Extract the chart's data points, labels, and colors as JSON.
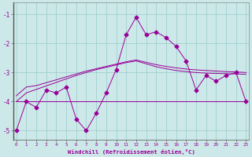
{
  "x": [
    0,
    1,
    2,
    3,
    4,
    5,
    6,
    7,
    8,
    9,
    10,
    11,
    12,
    13,
    14,
    15,
    16,
    17,
    18,
    19,
    20,
    21,
    22,
    23
  ],
  "y_main": [
    -5.0,
    -4.0,
    -4.2,
    -3.6,
    -3.7,
    -3.5,
    -4.6,
    -5.0,
    -4.4,
    -3.7,
    -2.9,
    -1.7,
    -1.1,
    -1.7,
    -1.6,
    -1.8,
    -2.1,
    -2.6,
    -3.6,
    -3.1,
    -3.3,
    -3.1,
    -3.0,
    -4.0
  ],
  "y_smooth1": [
    -3.8,
    -3.5,
    -3.45,
    -3.35,
    -3.25,
    -3.15,
    -3.05,
    -2.95,
    -2.87,
    -2.79,
    -2.71,
    -2.63,
    -2.57,
    -2.65,
    -2.73,
    -2.79,
    -2.84,
    -2.88,
    -2.91,
    -2.93,
    -2.95,
    -2.97,
    -2.98,
    -3.0
  ],
  "y_smooth2": [
    -4.0,
    -3.7,
    -3.58,
    -3.46,
    -3.34,
    -3.22,
    -3.1,
    -3.0,
    -2.9,
    -2.82,
    -2.74,
    -2.66,
    -2.6,
    -2.7,
    -2.8,
    -2.87,
    -2.93,
    -2.97,
    -3.0,
    -3.02,
    -3.03,
    -3.04,
    -3.05,
    -3.06
  ],
  "y_flat": [
    -4.0,
    -4.0,
    -4.0,
    -4.0,
    -4.0,
    -4.0,
    -4.0,
    -4.0,
    -4.0,
    -4.0,
    -4.0,
    -4.0,
    -4.0,
    -4.0,
    -4.0,
    -4.0,
    -4.0,
    -4.0,
    -4.0,
    -4.0,
    -4.0,
    -4.0,
    -4.0,
    -4.0
  ],
  "line_color": "#990099",
  "bg_color": "#cce8e8",
  "grid_color": "#99cccc",
  "ylim": [
    -5.3,
    -0.6
  ],
  "xlim": [
    -0.3,
    23.3
  ],
  "yticks": [
    -5,
    -4,
    -3,
    -2,
    -1
  ],
  "xticks": [
    0,
    1,
    2,
    3,
    4,
    5,
    6,
    7,
    8,
    9,
    10,
    11,
    12,
    13,
    14,
    15,
    16,
    17,
    18,
    19,
    20,
    21,
    22,
    23
  ],
  "xlabel": "Windchill (Refroidissement éolien,°C)",
  "marker": "D",
  "markersize": 2.5,
  "linewidth": 0.7
}
